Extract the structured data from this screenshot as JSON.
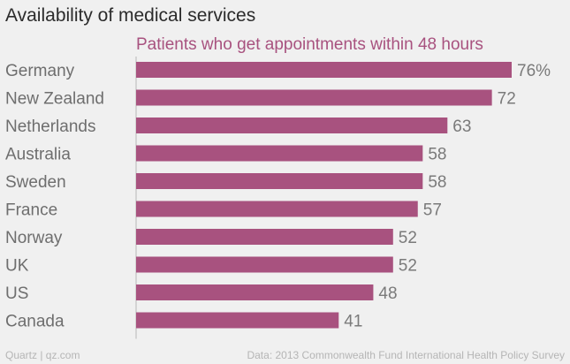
{
  "header": {
    "title": "Availability of medical services"
  },
  "footer": {
    "brand": "Quartz | qz.com",
    "source": "Data: 2013 Commonwealth Fund International Health Policy Survey"
  },
  "chart_data": {
    "type": "bar",
    "orientation": "horizontal",
    "title": "Availability of medical services",
    "subtitle": "Patients who get appointments within 48 hours",
    "categories": [
      "Germany",
      "New Zealand",
      "Netherlands",
      "Australia",
      "Sweden",
      "France",
      "Norway",
      "UK",
      "US",
      "Canada"
    ],
    "values": [
      76,
      72,
      63,
      58,
      58,
      57,
      52,
      52,
      48,
      41
    ],
    "value_labels": [
      "76%",
      "72",
      "63",
      "58",
      "58",
      "57",
      "52",
      "52",
      "48",
      "41"
    ],
    "xlim": [
      0,
      76
    ],
    "bar_color": "#a8527f",
    "subtitle_color": "#a8527f",
    "value_label_color": "#7a7a7a",
    "category_label_color": "#6e6e6e",
    "axis_color": "#b9b9b9",
    "grid": false,
    "legend": "none"
  }
}
